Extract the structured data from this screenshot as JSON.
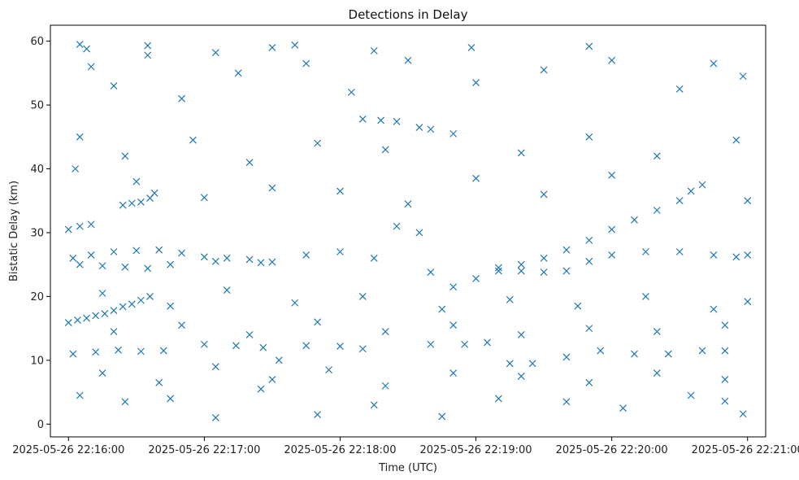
{
  "chart_data": {
    "type": "scatter",
    "title": "Detections in Delay",
    "xlabel": "Time (UTC)",
    "ylabel": "Bistatic Delay (km)",
    "marker": "x",
    "color": "#1f77b4",
    "grid": false,
    "legend": "none",
    "xlim": [
      "2025-05-26 22:15:52",
      "2025-05-26 22:21:08"
    ],
    "ylim": [
      -2,
      62.5
    ],
    "x_ticks": [
      {
        "value": "2025-05-26 22:16:00",
        "label": "2025-05-26 22:16:00"
      },
      {
        "value": "2025-05-26 22:17:00",
        "label": "2025-05-26 22:17:00"
      },
      {
        "value": "2025-05-26 22:18:00",
        "label": "2025-05-26 22:18:00"
      },
      {
        "value": "2025-05-26 22:19:00",
        "label": "2025-05-26 22:19:00"
      },
      {
        "value": "2025-05-26 22:20:00",
        "label": "2025-05-26 22:20:00"
      },
      {
        "value": "2025-05-26 22:21:00",
        "label": "2025-05-26 22:21:00"
      }
    ],
    "y_ticks": [
      0,
      10,
      20,
      30,
      40,
      50,
      60
    ],
    "series": [
      {
        "points": [
          [
            "2025-05-26 22:16:00",
            15.9
          ],
          [
            "2025-05-26 22:16:04",
            16.3
          ],
          [
            "2025-05-26 22:16:08",
            16.6
          ],
          [
            "2025-05-26 22:16:12",
            17.0
          ],
          [
            "2025-05-26 22:16:16",
            17.3
          ],
          [
            "2025-05-26 22:16:20",
            17.8
          ],
          [
            "2025-05-26 22:16:24",
            18.4
          ],
          [
            "2025-05-26 22:16:28",
            18.8
          ],
          [
            "2025-05-26 22:16:32",
            19.4
          ],
          [
            "2025-05-26 22:16:36",
            20.0
          ],
          [
            "2025-05-26 22:16:00",
            30.5
          ],
          [
            "2025-05-26 22:16:05",
            31.0
          ],
          [
            "2025-05-26 22:16:10",
            31.3
          ],
          [
            "2025-05-26 22:16:24",
            34.3
          ],
          [
            "2025-05-26 22:16:28",
            34.6
          ],
          [
            "2025-05-26 22:16:32",
            34.8
          ],
          [
            "2025-05-26 22:16:36",
            35.4
          ],
          [
            "2025-05-26 22:16:38",
            36.2
          ],
          [
            "2025-05-26 22:16:02",
            26.0
          ],
          [
            "2025-05-26 22:16:10",
            26.5
          ],
          [
            "2025-05-26 22:16:20",
            27.0
          ],
          [
            "2025-05-26 22:16:30",
            27.2
          ],
          [
            "2025-05-26 22:16:40",
            27.3
          ],
          [
            "2025-05-26 22:16:50",
            26.8
          ],
          [
            "2025-05-26 22:17:00",
            26.2
          ],
          [
            "2025-05-26 22:17:10",
            26.0
          ],
          [
            "2025-05-26 22:17:20",
            25.8
          ],
          [
            "2025-05-26 22:17:30",
            25.4
          ],
          [
            "2025-05-26 22:16:05",
            25.0
          ],
          [
            "2025-05-26 22:16:15",
            24.8
          ],
          [
            "2025-05-26 22:16:25",
            24.6
          ],
          [
            "2025-05-26 22:16:35",
            24.4
          ],
          [
            "2025-05-26 22:16:45",
            25.0
          ],
          [
            "2025-05-26 22:17:05",
            25.5
          ],
          [
            "2025-05-26 22:17:25",
            25.3
          ],
          [
            "2025-05-26 22:17:45",
            26.5
          ],
          [
            "2025-05-26 22:18:00",
            27.0
          ],
          [
            "2025-05-26 22:18:15",
            26.0
          ],
          [
            "2025-05-26 22:16:02",
            11.0
          ],
          [
            "2025-05-26 22:16:12",
            11.3
          ],
          [
            "2025-05-26 22:16:22",
            11.6
          ],
          [
            "2025-05-26 22:16:32",
            11.4
          ],
          [
            "2025-05-26 22:16:42",
            11.5
          ],
          [
            "2025-05-26 22:17:00",
            12.5
          ],
          [
            "2025-05-26 22:17:14",
            12.3
          ],
          [
            "2025-05-26 22:17:26",
            12.0
          ],
          [
            "2025-05-26 22:17:33",
            10.0
          ],
          [
            "2025-05-26 22:17:45",
            12.3
          ],
          [
            "2025-05-26 22:18:00",
            12.2
          ],
          [
            "2025-05-26 22:18:10",
            11.8
          ],
          [
            "2025-05-26 22:18:10",
            47.8
          ],
          [
            "2025-05-26 22:18:18",
            47.6
          ],
          [
            "2025-05-26 22:18:25",
            47.4
          ],
          [
            "2025-05-26 22:18:35",
            46.5
          ],
          [
            "2025-05-26 22:18:40",
            46.2
          ],
          [
            "2025-05-26 22:18:25",
            31.0
          ],
          [
            "2025-05-26 22:18:35",
            30.0
          ],
          [
            "2025-05-26 22:18:40",
            23.8
          ],
          [
            "2025-05-26 22:18:50",
            21.5
          ],
          [
            "2025-05-26 22:19:00",
            22.8
          ],
          [
            "2025-05-26 22:19:10",
            24.0
          ],
          [
            "2025-05-26 22:19:20",
            25.0
          ],
          [
            "2025-05-26 22:19:30",
            26.0
          ],
          [
            "2025-05-26 22:19:40",
            27.3
          ],
          [
            "2025-05-26 22:19:50",
            28.8
          ],
          [
            "2025-05-26 22:20:00",
            30.5
          ],
          [
            "2025-05-26 22:20:10",
            32.0
          ],
          [
            "2025-05-26 22:20:20",
            33.5
          ],
          [
            "2025-05-26 22:20:30",
            35.0
          ],
          [
            "2025-05-26 22:20:35",
            36.5
          ],
          [
            "2025-05-26 22:19:10",
            24.5
          ],
          [
            "2025-05-26 22:19:20",
            24.0
          ],
          [
            "2025-05-26 22:19:30",
            23.8
          ],
          [
            "2025-05-26 22:19:40",
            24.0
          ],
          [
            "2025-05-26 22:19:50",
            25.5
          ],
          [
            "2025-05-26 22:20:00",
            26.5
          ],
          [
            "2025-05-26 22:20:15",
            27.0
          ],
          [
            "2025-05-26 22:20:30",
            27.0
          ],
          [
            "2025-05-26 22:20:45",
            26.5
          ],
          [
            "2025-05-26 22:20:55",
            26.2
          ],
          [
            "2025-05-26 22:21:00",
            26.5
          ],
          [
            "2025-05-26 22:18:40",
            12.5
          ],
          [
            "2025-05-26 22:18:55",
            12.5
          ],
          [
            "2025-05-26 22:19:05",
            12.8
          ],
          [
            "2025-05-26 22:19:15",
            9.5
          ],
          [
            "2025-05-26 22:19:25",
            9.5
          ],
          [
            "2025-05-26 22:19:40",
            10.5
          ],
          [
            "2025-05-26 22:19:55",
            11.5
          ],
          [
            "2025-05-26 22:20:10",
            11.0
          ],
          [
            "2025-05-26 22:20:25",
            11.0
          ],
          [
            "2025-05-26 22:20:40",
            11.5
          ],
          [
            "2025-05-26 22:20:50",
            11.5
          ],
          [
            "2025-05-26 22:16:05",
            59.5
          ],
          [
            "2025-05-26 22:16:08",
            58.8
          ],
          [
            "2025-05-26 22:16:35",
            59.3
          ],
          [
            "2025-05-26 22:16:35",
            57.8
          ],
          [
            "2025-05-26 22:17:05",
            58.2
          ],
          [
            "2025-05-26 22:17:30",
            59.0
          ],
          [
            "2025-05-26 22:17:40",
            59.4
          ],
          [
            "2025-05-26 22:18:15",
            58.5
          ],
          [
            "2025-05-26 22:18:58",
            59.0
          ],
          [
            "2025-05-26 22:19:50",
            59.2
          ],
          [
            "2025-05-26 22:20:45",
            56.5
          ],
          [
            "2025-05-26 22:16:10",
            56.0
          ],
          [
            "2025-05-26 22:16:20",
            53.0
          ],
          [
            "2025-05-26 22:16:50",
            51.0
          ],
          [
            "2025-05-26 22:17:15",
            55.0
          ],
          [
            "2025-05-26 22:17:45",
            56.5
          ],
          [
            "2025-05-26 22:18:05",
            52.0
          ],
          [
            "2025-05-26 22:18:30",
            57.0
          ],
          [
            "2025-05-26 22:19:00",
            53.5
          ],
          [
            "2025-05-26 22:19:30",
            55.5
          ],
          [
            "2025-05-26 22:20:00",
            57.0
          ],
          [
            "2025-05-26 22:20:30",
            52.5
          ],
          [
            "2025-05-26 22:20:58",
            54.5
          ],
          [
            "2025-05-26 22:16:05",
            45.0
          ],
          [
            "2025-05-26 22:16:25",
            42.0
          ],
          [
            "2025-05-26 22:16:55",
            44.5
          ],
          [
            "2025-05-26 22:17:20",
            41.0
          ],
          [
            "2025-05-26 22:17:50",
            44.0
          ],
          [
            "2025-05-26 22:18:20",
            43.0
          ],
          [
            "2025-05-26 22:18:50",
            45.5
          ],
          [
            "2025-05-26 22:19:20",
            42.5
          ],
          [
            "2025-05-26 22:19:50",
            45.0
          ],
          [
            "2025-05-26 22:20:20",
            42.0
          ],
          [
            "2025-05-26 22:20:55",
            44.5
          ],
          [
            "2025-05-26 22:16:03",
            40.0
          ],
          [
            "2025-05-26 22:16:30",
            38.0
          ],
          [
            "2025-05-26 22:17:00",
            35.5
          ],
          [
            "2025-05-26 22:17:30",
            37.0
          ],
          [
            "2025-05-26 22:18:00",
            36.5
          ],
          [
            "2025-05-26 22:18:30",
            34.5
          ],
          [
            "2025-05-26 22:19:00",
            38.5
          ],
          [
            "2025-05-26 22:19:30",
            36.0
          ],
          [
            "2025-05-26 22:20:00",
            39.0
          ],
          [
            "2025-05-26 22:20:40",
            37.5
          ],
          [
            "2025-05-26 22:21:00",
            35.0
          ],
          [
            "2025-05-26 22:16:15",
            20.5
          ],
          [
            "2025-05-26 22:16:45",
            18.5
          ],
          [
            "2025-05-26 22:17:10",
            21.0
          ],
          [
            "2025-05-26 22:17:40",
            19.0
          ],
          [
            "2025-05-26 22:18:10",
            20.0
          ],
          [
            "2025-05-26 22:18:45",
            18.0
          ],
          [
            "2025-05-26 22:19:15",
            19.5
          ],
          [
            "2025-05-26 22:19:45",
            18.5
          ],
          [
            "2025-05-26 22:20:15",
            20.0
          ],
          [
            "2025-05-26 22:20:45",
            18.0
          ],
          [
            "2025-05-26 22:21:00",
            19.2
          ],
          [
            "2025-05-26 22:16:05",
            4.5
          ],
          [
            "2025-05-26 22:16:25",
            3.5
          ],
          [
            "2025-05-26 22:16:45",
            4.0
          ],
          [
            "2025-05-26 22:17:05",
            1.0
          ],
          [
            "2025-05-26 22:17:25",
            5.5
          ],
          [
            "2025-05-26 22:17:50",
            1.5
          ],
          [
            "2025-05-26 22:18:15",
            3.0
          ],
          [
            "2025-05-26 22:18:45",
            1.2
          ],
          [
            "2025-05-26 22:19:10",
            4.0
          ],
          [
            "2025-05-26 22:19:40",
            3.5
          ],
          [
            "2025-05-26 22:20:05",
            2.5
          ],
          [
            "2025-05-26 22:20:35",
            4.5
          ],
          [
            "2025-05-26 22:20:50",
            3.6
          ],
          [
            "2025-05-26 22:20:58",
            1.6
          ],
          [
            "2025-05-26 22:16:15",
            8.0
          ],
          [
            "2025-05-26 22:16:40",
            6.5
          ],
          [
            "2025-05-26 22:17:05",
            9.0
          ],
          [
            "2025-05-26 22:17:30",
            7.0
          ],
          [
            "2025-05-26 22:17:55",
            8.5
          ],
          [
            "2025-05-26 22:18:20",
            6.0
          ],
          [
            "2025-05-26 22:18:50",
            8.0
          ],
          [
            "2025-05-26 22:19:20",
            7.5
          ],
          [
            "2025-05-26 22:19:50",
            6.5
          ],
          [
            "2025-05-26 22:20:20",
            8.0
          ],
          [
            "2025-05-26 22:20:50",
            7.0
          ],
          [
            "2025-05-26 22:16:20",
            14.5
          ],
          [
            "2025-05-26 22:16:50",
            15.5
          ],
          [
            "2025-05-26 22:17:20",
            14.0
          ],
          [
            "2025-05-26 22:17:50",
            16.0
          ],
          [
            "2025-05-26 22:18:20",
            14.5
          ],
          [
            "2025-05-26 22:18:50",
            15.5
          ],
          [
            "2025-05-26 22:19:20",
            14.0
          ],
          [
            "2025-05-26 22:19:50",
            15.0
          ],
          [
            "2025-05-26 22:20:20",
            14.5
          ],
          [
            "2025-05-26 22:20:50",
            15.5
          ]
        ]
      }
    ]
  }
}
